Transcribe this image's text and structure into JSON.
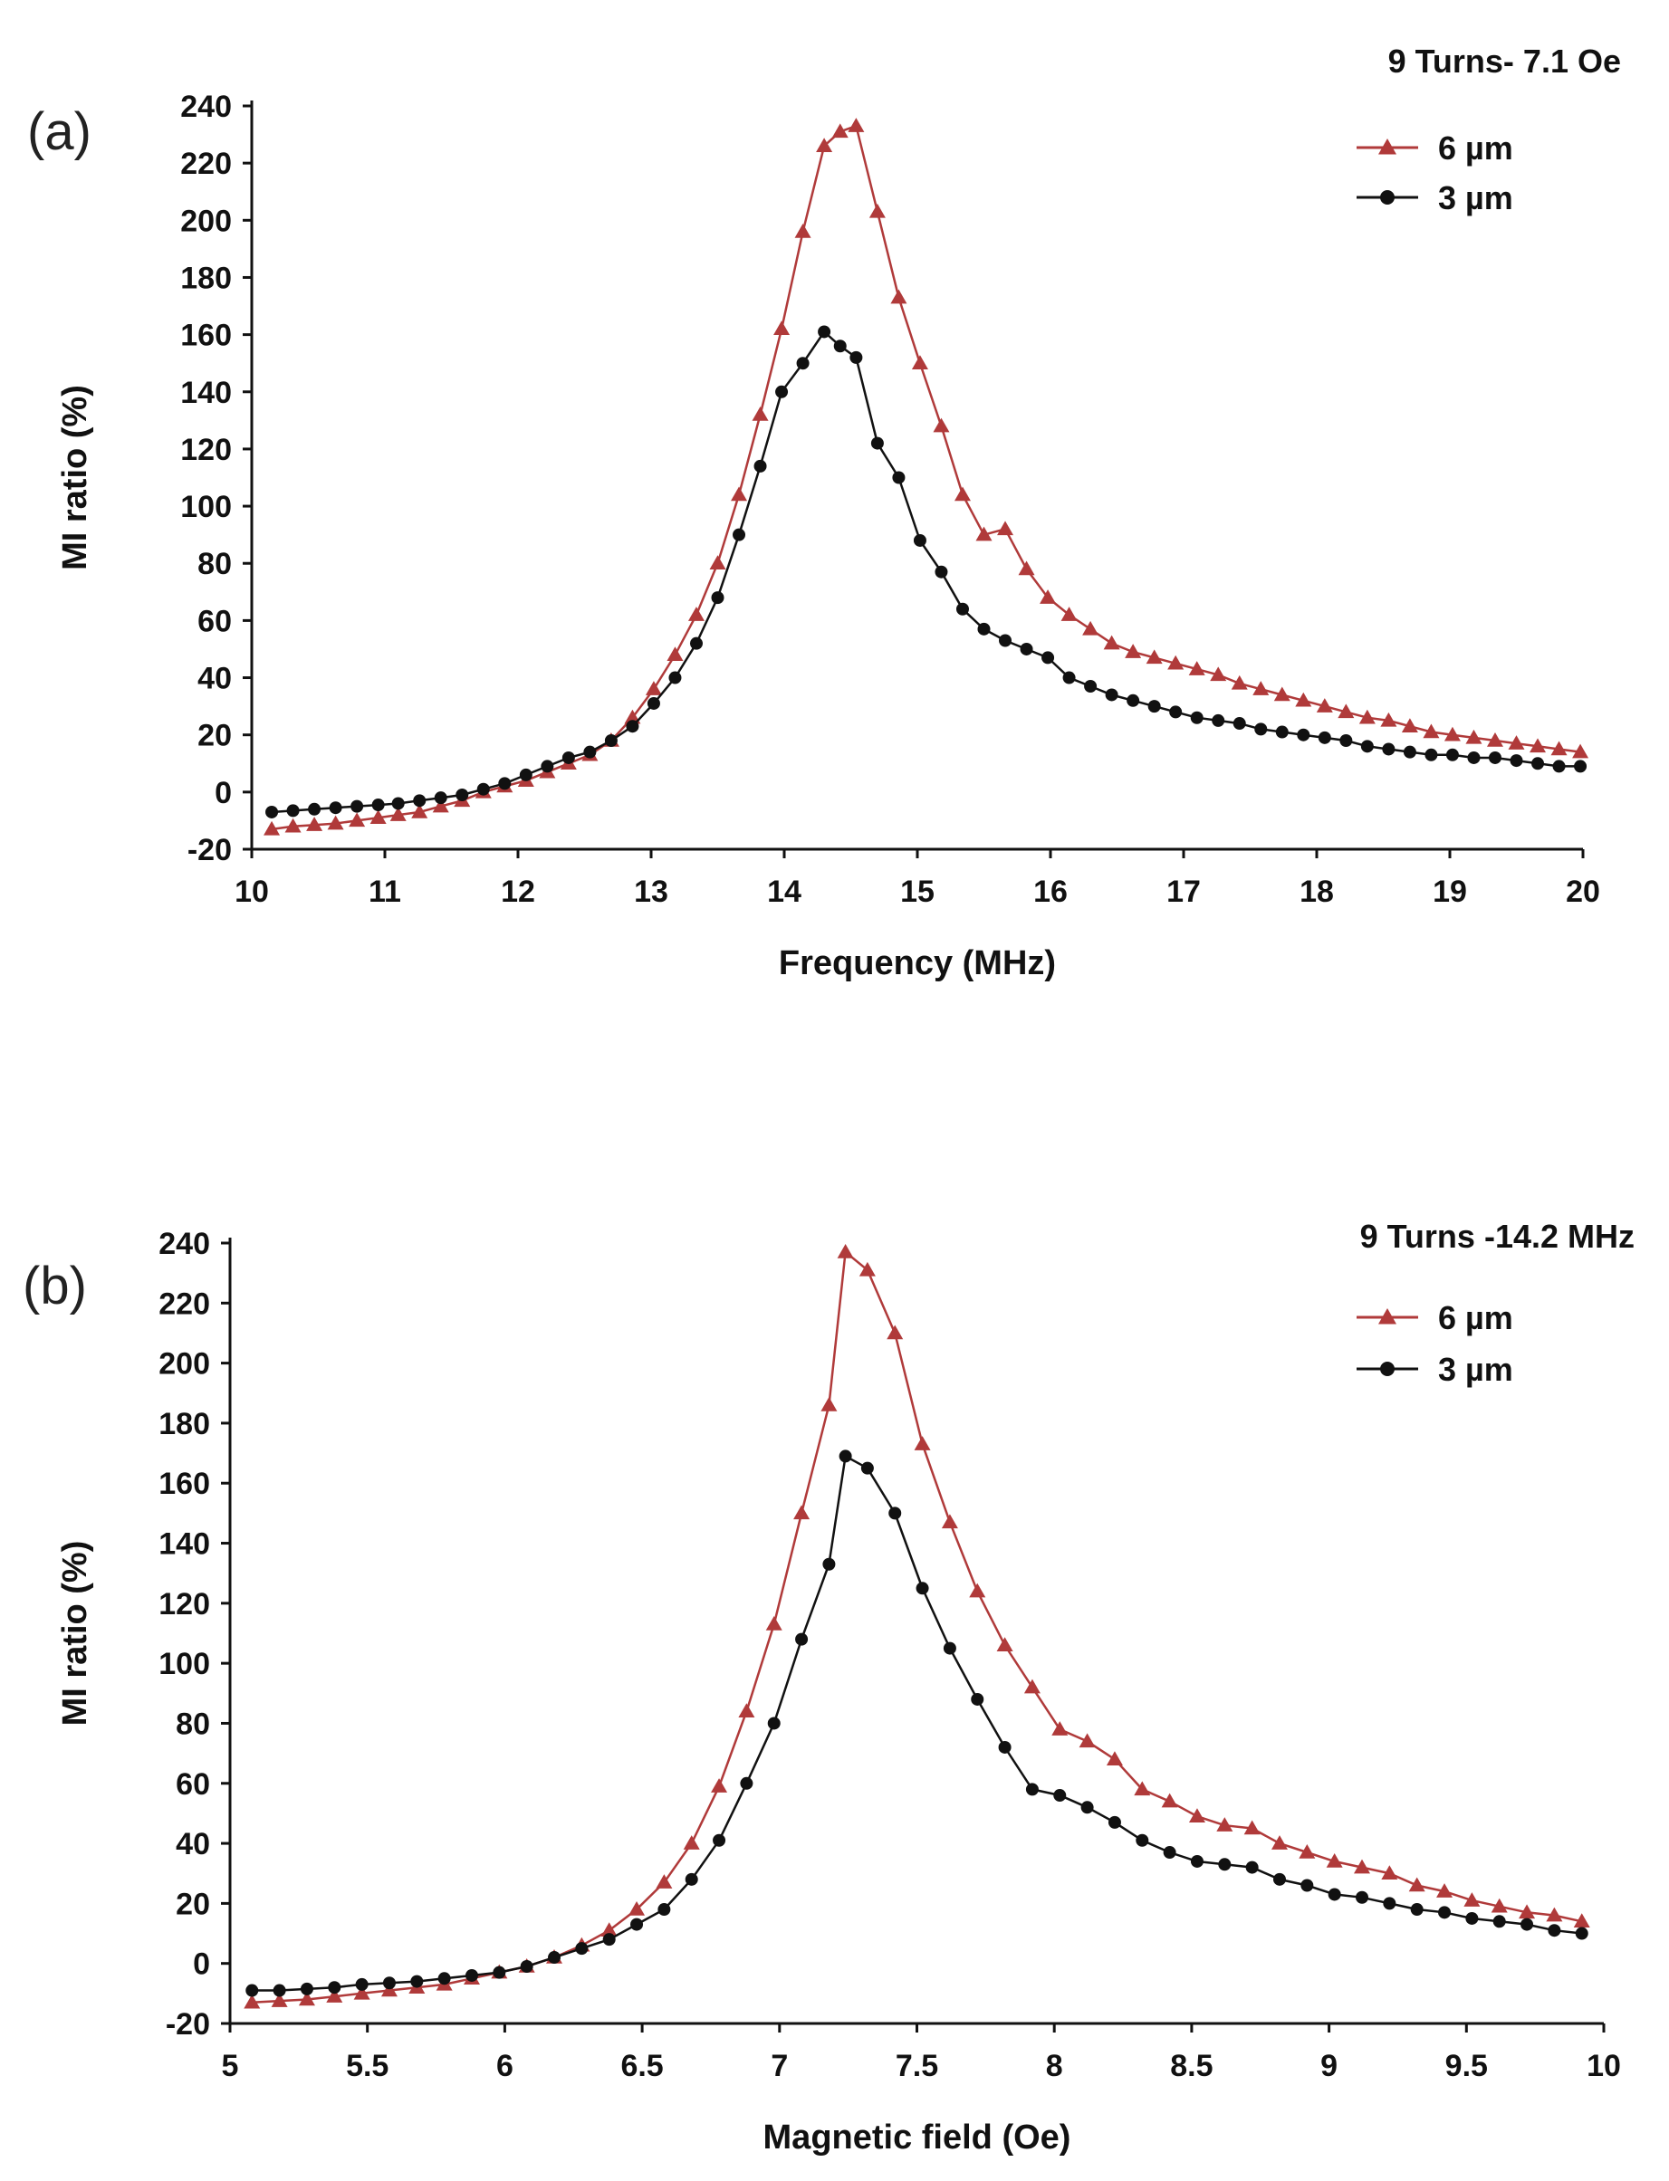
{
  "colors": {
    "s6": "#b03a3a",
    "s3": "#111111",
    "axis": "#111111"
  },
  "chart_data": [
    {
      "type": "line",
      "panel_label": "(a)",
      "annotation": "9 Turns- 7.1 Oe",
      "xlabel": "Frequency (MHz)",
      "ylabel": "MI ratio (%)",
      "xlim": [
        10,
        20
      ],
      "ylim": [
        -20,
        240
      ],
      "xticks": [
        10,
        11,
        12,
        13,
        14,
        15,
        16,
        17,
        18,
        19,
        20
      ],
      "xtick_labels": [
        "10",
        "11",
        "12",
        "13",
        "14",
        "15",
        "16",
        "17",
        "18",
        "19",
        "20"
      ],
      "yticks": [
        -20,
        0,
        20,
        40,
        60,
        80,
        100,
        120,
        140,
        160,
        180,
        200,
        220,
        240
      ],
      "ytick_labels": [
        "-20",
        "0",
        "20",
        "40",
        "60",
        "80",
        "100",
        "120",
        "140",
        "160",
        "180",
        "200",
        "220",
        "240"
      ],
      "legend_position": "top-right",
      "series": [
        {
          "name": "6 µm",
          "marker": "triangle",
          "x": [
            10.15,
            10.31,
            10.47,
            10.63,
            10.79,
            10.95,
            11.1,
            11.26,
            11.42,
            11.58,
            11.74,
            11.9,
            12.06,
            12.22,
            12.38,
            12.54,
            12.7,
            12.86,
            13.02,
            13.18,
            13.34,
            13.5,
            13.66,
            13.82,
            13.98,
            14.14,
            14.3,
            14.42,
            14.54,
            14.7,
            14.86,
            15.02,
            15.18,
            15.34,
            15.5,
            15.66,
            15.82,
            15.98,
            16.14,
            16.3,
            16.46,
            16.62,
            16.78,
            16.94,
            17.1,
            17.26,
            17.42,
            17.58,
            17.74,
            17.9,
            18.06,
            18.22,
            18.38,
            18.54,
            18.7,
            18.86,
            19.02,
            19.18,
            19.34,
            19.5,
            19.66,
            19.82,
            19.98
          ],
          "y": [
            -13,
            -12,
            -11.5,
            -11,
            -10,
            -9,
            -8,
            -7,
            -5,
            -3,
            0,
            2,
            4,
            7,
            10,
            13,
            18,
            26,
            36,
            48,
            62,
            80,
            104,
            132,
            162,
            196,
            226,
            231,
            233,
            203,
            173,
            150,
            128,
            104,
            90,
            92,
            78,
            68,
            62,
            57,
            52,
            49,
            47,
            45,
            43,
            41,
            38,
            36,
            34,
            32,
            30,
            28,
            26,
            25,
            23,
            21,
            20,
            19,
            18,
            17,
            16,
            15,
            14
          ]
        },
        {
          "name": "3 µm",
          "marker": "circle",
          "x": [
            10.15,
            10.31,
            10.47,
            10.63,
            10.79,
            10.95,
            11.1,
            11.26,
            11.42,
            11.58,
            11.74,
            11.9,
            12.06,
            12.22,
            12.38,
            12.54,
            12.7,
            12.86,
            13.02,
            13.18,
            13.34,
            13.5,
            13.66,
            13.82,
            13.98,
            14.14,
            14.3,
            14.42,
            14.54,
            14.7,
            14.86,
            15.02,
            15.18,
            15.34,
            15.5,
            15.66,
            15.82,
            15.98,
            16.14,
            16.3,
            16.46,
            16.62,
            16.78,
            16.94,
            17.1,
            17.26,
            17.42,
            17.58,
            17.74,
            17.9,
            18.06,
            18.22,
            18.38,
            18.54,
            18.7,
            18.86,
            19.02,
            19.18,
            19.34,
            19.5,
            19.66,
            19.82,
            19.98
          ],
          "y": [
            -7,
            -6.5,
            -6,
            -5.5,
            -5,
            -4.5,
            -4,
            -3,
            -2,
            -1,
            1,
            3,
            6,
            9,
            12,
            14,
            18,
            23,
            31,
            40,
            52,
            68,
            90,
            114,
            140,
            150,
            161,
            156,
            152,
            122,
            110,
            88,
            77,
            64,
            57,
            53,
            50,
            47,
            40,
            37,
            34,
            32,
            30,
            28,
            26,
            25,
            24,
            22,
            21,
            20,
            19,
            18,
            16,
            15,
            14,
            13,
            13,
            12,
            12,
            11,
            10,
            9,
            9
          ]
        }
      ]
    },
    {
      "type": "line",
      "panel_label": "(b)",
      "annotation": "9 Turns -14.2 MHz",
      "xlabel": "Magnetic field  (Oe)",
      "ylabel": "MI ratio (%)",
      "xlim": [
        5,
        10
      ],
      "ylim": [
        -20,
        240
      ],
      "xticks": [
        5,
        5.5,
        6,
        6.5,
        7,
        7.5,
        8,
        8.5,
        9,
        9.5,
        10
      ],
      "xtick_labels": [
        "5",
        "5.5",
        "6",
        "6.5",
        "7",
        "7.5",
        "8",
        "8.5",
        "9",
        "9.5",
        "10"
      ],
      "yticks": [
        -20,
        0,
        20,
        40,
        60,
        80,
        100,
        120,
        140,
        160,
        180,
        200,
        220,
        240
      ],
      "ytick_labels": [
        "-20",
        "0",
        "20",
        "40",
        "60",
        "80",
        "100",
        "120",
        "140",
        "160",
        "180",
        "200",
        "220",
        "240"
      ],
      "legend_position": "top-right",
      "series": [
        {
          "name": "6 µm",
          "marker": "triangle",
          "x": [
            5.08,
            5.18,
            5.28,
            5.38,
            5.48,
            5.58,
            5.68,
            5.78,
            5.88,
            5.98,
            6.08,
            6.18,
            6.28,
            6.38,
            6.48,
            6.58,
            6.68,
            6.78,
            6.88,
            6.98,
            7.08,
            7.18,
            7.24,
            7.32,
            7.42,
            7.52,
            7.62,
            7.72,
            7.82,
            7.92,
            8.02,
            8.12,
            8.22,
            8.32,
            8.42,
            8.52,
            8.62,
            8.72,
            8.82,
            8.92,
            9.02,
            9.12,
            9.22,
            9.32,
            9.42,
            9.52,
            9.62,
            9.72,
            9.82,
            9.92
          ],
          "y": [
            -13,
            -12.5,
            -12,
            -11,
            -10,
            -9,
            -8,
            -7,
            -5,
            -3,
            -1,
            2,
            6,
            11,
            18,
            27,
            40,
            59,
            84,
            113,
            150,
            186,
            237,
            231,
            210,
            173,
            147,
            124,
            106,
            92,
            78,
            74,
            68,
            58,
            54,
            49,
            46,
            45,
            40,
            37,
            34,
            32,
            30,
            26,
            24,
            21,
            19,
            17,
            16,
            14
          ]
        },
        {
          "name": "3 µm",
          "marker": "circle",
          "x": [
            5.08,
            5.18,
            5.28,
            5.38,
            5.48,
            5.58,
            5.68,
            5.78,
            5.88,
            5.98,
            6.08,
            6.18,
            6.28,
            6.38,
            6.48,
            6.58,
            6.68,
            6.78,
            6.88,
            6.98,
            7.08,
            7.18,
            7.24,
            7.32,
            7.42,
            7.52,
            7.62,
            7.72,
            7.82,
            7.92,
            8.02,
            8.12,
            8.22,
            8.32,
            8.42,
            8.52,
            8.62,
            8.72,
            8.82,
            8.92,
            9.02,
            9.12,
            9.22,
            9.32,
            9.42,
            9.52,
            9.62,
            9.72,
            9.82,
            9.92
          ],
          "y": [
            -9,
            -9,
            -8.5,
            -8,
            -7,
            -6.5,
            -6,
            -5,
            -4,
            -3,
            -1,
            2,
            5,
            8,
            13,
            18,
            28,
            41,
            60,
            80,
            108,
            133,
            169,
            165,
            150,
            125,
            105,
            88,
            72,
            58,
            56,
            52,
            47,
            41,
            37,
            34,
            33,
            32,
            28,
            26,
            23,
            22,
            20,
            18,
            17,
            15,
            14,
            13,
            11,
            10
          ]
        }
      ]
    }
  ]
}
